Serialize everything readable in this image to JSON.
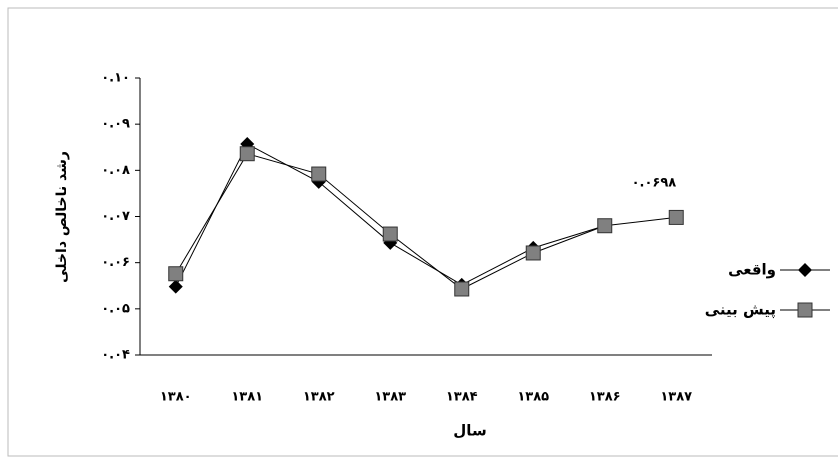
{
  "chart_data": {
    "type": "line",
    "y_label": "رشد ناخالص داخلی",
    "x_label": "سال",
    "categories": [
      "۱۳۸۰",
      "۱۳۸۱",
      "۱۳۸۲",
      "۱۳۸۳",
      "۱۳۸۴",
      "۱۳۸۵",
      "۱۳۸۶",
      "۱۳۸۷"
    ],
    "series": [
      {
        "name": "واقعی",
        "color": "#000000",
        "marker": "diamond",
        "values": [
          0.0548,
          0.0857,
          0.0775,
          0.0643,
          0.0552,
          0.0632,
          0.068,
          null
        ]
      },
      {
        "name": "پیش بینی",
        "color": "#808080",
        "marker": "square",
        "values": [
          0.0576,
          0.0836,
          0.0792,
          0.0662,
          0.0543,
          0.0621,
          0.068,
          0.0698
        ]
      }
    ],
    "annotation": "۰.۰۶۹۸",
    "ylim": [
      0.04,
      0.1
    ],
    "yticks": [
      {
        "value": 0.04,
        "label": "۰.۰۴"
      },
      {
        "value": 0.05,
        "label": "۰.۰۵"
      },
      {
        "value": 0.06,
        "label": "۰.۰۶"
      },
      {
        "value": 0.07,
        "label": "۰.۰۷"
      },
      {
        "value": 0.08,
        "label": "۰.۰۸"
      },
      {
        "value": 0.09,
        "label": "۰.۰۹"
      },
      {
        "value": 0.1,
        "label": "۰.۱۰"
      }
    ],
    "legend": "right"
  }
}
